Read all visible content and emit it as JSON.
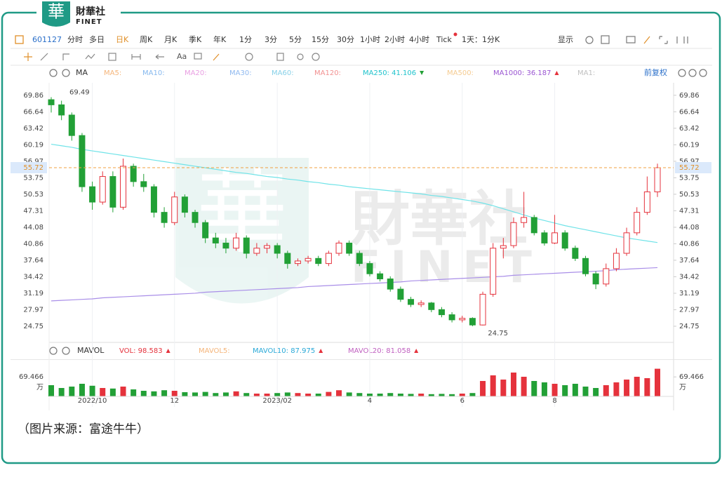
{
  "header": {
    "logo_char": "華",
    "brand": "財華社",
    "brand_en": "FINET"
  },
  "toolbar": {
    "symbol": "601127",
    "tabs": [
      "分时",
      "多日",
      "日K",
      "周K",
      "月K",
      "季K",
      "年K",
      "1分",
      "3分",
      "5分",
      "15分",
      "30分",
      "1小时",
      "2小时",
      "4小时",
      "Tick",
      "1天：1分K"
    ],
    "active_tab": "日K",
    "display": "显示",
    "font_tool": "Aa"
  },
  "indicators": {
    "name": "MA",
    "adjust": "前复权",
    "labels": [
      {
        "text": "MA5:",
        "color": "#f5b57a"
      },
      {
        "text": "MA10:",
        "color": "#86b8ee"
      },
      {
        "text": "MA20:",
        "color": "#e99ee2"
      },
      {
        "text": "MA30:",
        "color": "#8fb9f0"
      },
      {
        "text": "MA60:",
        "color": "#86d0e8"
      },
      {
        "text": "MA120:",
        "color": "#f29090"
      },
      {
        "text": "MA250: 41.106",
        "color": "#1fc3cc",
        "trend": "down"
      },
      {
        "text": "MA500:",
        "color": "#f5cb90"
      },
      {
        "text": "MA1000: 36.187",
        "color": "#9a55d2",
        "trend": "up"
      },
      {
        "text": "MA1:",
        "color": "#c0c0c0"
      }
    ]
  },
  "chart_data": {
    "type": "candlestick",
    "up_color": "#e5323c",
    "down_color": "#22a036",
    "categories": [
      null,
      null,
      null,
      null,
      "2022/10",
      null,
      null,
      null,
      null,
      null,
      null,
      null,
      "12",
      null,
      null,
      null,
      null,
      null,
      null,
      null,
      null,
      null,
      "2023/02",
      null,
      null,
      null,
      null,
      null,
      null,
      null,
      null,
      "4",
      null,
      null,
      null,
      null,
      null,
      null,
      null,
      null,
      "6",
      null,
      null,
      null,
      null,
      null,
      null,
      null,
      null,
      "8",
      null,
      null,
      null,
      null,
      null,
      null,
      null,
      null,
      null,
      null
    ],
    "candles": [
      [
        69,
        69.49,
        66.5,
        68
      ],
      [
        68,
        68.8,
        65,
        66
      ],
      [
        66,
        66.5,
        61,
        62
      ],
      [
        62,
        62.5,
        51,
        52
      ],
      [
        52,
        53,
        47.5,
        49
      ],
      [
        49,
        55,
        48.5,
        54
      ],
      [
        54,
        55,
        47,
        48
      ],
      [
        48,
        57.5,
        47.5,
        56
      ],
      [
        56,
        56.5,
        52,
        53
      ],
      [
        53,
        54.5,
        51,
        52
      ],
      [
        52,
        52.5,
        46,
        47
      ],
      [
        47,
        48,
        44,
        45
      ],
      [
        45,
        51,
        44.5,
        50
      ],
      [
        50,
        50.5,
        46,
        47
      ],
      [
        47,
        47.5,
        44,
        45
      ],
      [
        45,
        45.5,
        41,
        42
      ],
      [
        42,
        43,
        40,
        41
      ],
      [
        41,
        42,
        39,
        40
      ],
      [
        40,
        43,
        39.5,
        42
      ],
      [
        42,
        42.5,
        38,
        39
      ],
      [
        39,
        41,
        38.5,
        40
      ],
      [
        40,
        41,
        39,
        40.5
      ],
      [
        40.5,
        41,
        38,
        39
      ],
      [
        39,
        39.5,
        36,
        37
      ],
      [
        37,
        38,
        36.5,
        37.5
      ],
      [
        37.5,
        38.5,
        37,
        38
      ],
      [
        38,
        38.5,
        36.5,
        37
      ],
      [
        37,
        39.5,
        36.5,
        39
      ],
      [
        39,
        41.5,
        38.5,
        41
      ],
      [
        41,
        41.5,
        38.5,
        39
      ],
      [
        39,
        39.5,
        36.5,
        37
      ],
      [
        37,
        37.5,
        34.5,
        35
      ],
      [
        35,
        35.5,
        33.5,
        34
      ],
      [
        34,
        34.5,
        31.5,
        32
      ],
      [
        32,
        32.5,
        29.5,
        30
      ],
      [
        30,
        30.5,
        28.5,
        29
      ],
      [
        29,
        29.8,
        28.5,
        29.3
      ],
      [
        29.3,
        29.5,
        27.5,
        28
      ],
      [
        28,
        28.5,
        26.5,
        27
      ],
      [
        27,
        27.5,
        25.5,
        26
      ],
      [
        26,
        26.8,
        25.5,
        26.3
      ],
      [
        26.3,
        26.5,
        24.75,
        25
      ],
      [
        25,
        31.5,
        24.9,
        31
      ],
      [
        31,
        41,
        30.5,
        40
      ],
      [
        40,
        42,
        38,
        40.5
      ],
      [
        40.5,
        46,
        40,
        45
      ],
      [
        45,
        51,
        44,
        46
      ],
      [
        46,
        46.5,
        42.5,
        43
      ],
      [
        43,
        43.5,
        40.5,
        41
      ],
      [
        41,
        46.5,
        40.8,
        43
      ],
      [
        43,
        43.5,
        39.5,
        40
      ],
      [
        40,
        40.5,
        37.5,
        38
      ],
      [
        38,
        38.5,
        34.5,
        35
      ],
      [
        35,
        35.5,
        32,
        33
      ],
      [
        33,
        37,
        32.5,
        36
      ],
      [
        36,
        40,
        35.5,
        39
      ],
      [
        39,
        44,
        38.5,
        43
      ],
      [
        43,
        48,
        42.5,
        47
      ],
      [
        47,
        54,
        46.5,
        51
      ],
      [
        51,
        56.5,
        50,
        55.72
      ]
    ],
    "series": [
      {
        "name": "MA250",
        "color": "#6fe3e8",
        "values": [
          60.3,
          60.0,
          59.7,
          59.3,
          59.0,
          58.7,
          58.4,
          58.1,
          57.8,
          57.5,
          57.2,
          56.9,
          56.6,
          56.3,
          56.0,
          55.7,
          55.4,
          55.1,
          54.8,
          54.6,
          54.3,
          54.0,
          53.8,
          53.5,
          53.3,
          53.0,
          52.8,
          52.5,
          52.3,
          52.0,
          51.8,
          51.6,
          51.4,
          51.2,
          51.0,
          50.8,
          50.6,
          50.3,
          50.1,
          49.8,
          49.5,
          49.2,
          48.8,
          48.3,
          47.7,
          47.1,
          46.5,
          45.9,
          45.4,
          44.9,
          44.4,
          44.0,
          43.6,
          43.2,
          42.8,
          42.4,
          42.0,
          41.7,
          41.4,
          41.1
        ]
      },
      {
        "name": "MA1000",
        "color": "#a98ee8",
        "values": [
          29.7,
          29.8,
          29.9,
          30.0,
          30.1,
          30.3,
          30.4,
          30.5,
          30.6,
          30.7,
          30.8,
          30.9,
          31.0,
          31.1,
          31.2,
          31.4,
          31.5,
          31.6,
          31.7,
          31.8,
          31.9,
          32.0,
          32.1,
          32.2,
          32.3,
          32.5,
          32.6,
          32.7,
          32.8,
          32.9,
          33.0,
          33.1,
          33.2,
          33.3,
          33.4,
          33.6,
          33.7,
          33.8,
          33.9,
          34.0,
          34.1,
          34.2,
          34.3,
          34.4,
          34.5,
          34.7,
          34.8,
          34.9,
          35.0,
          35.1,
          35.2,
          35.3,
          35.4,
          35.5,
          35.6,
          35.8,
          35.9,
          36.0,
          36.1,
          36.2
        ]
      }
    ],
    "ylim": [
      21.6,
      72.3
    ],
    "yticks": [
      69.86,
      66.64,
      63.42,
      60.19,
      56.97,
      53.75,
      50.53,
      47.31,
      44.08,
      40.86,
      37.64,
      34.42,
      31.19,
      27.97,
      24.75
    ],
    "last_price": 55.72,
    "high_label": 69.49,
    "low_label": 24.75
  },
  "volume": {
    "indicator": "MAVOL",
    "unit": "万",
    "labels": [
      {
        "text": "VOL: 98.583",
        "color": "#e5323c",
        "trend": "up"
      },
      {
        "text": "MAVOL5:",
        "color": "#f5b57a"
      },
      {
        "text": "MAVOL10: 87.975",
        "color": "#2aa9d8",
        "trend": "up"
      },
      {
        "text": "MAVOL20: 81.058",
        "color": "#c060c0",
        "trend": "up"
      }
    ],
    "values": [
      40,
      30,
      35,
      45,
      38,
      30,
      28,
      35,
      25,
      20,
      18,
      22,
      20,
      15,
      14,
      16,
      12,
      14,
      18,
      12,
      10,
      10,
      12,
      14,
      12,
      10,
      10,
      16,
      22,
      14,
      12,
      10,
      10,
      12,
      10,
      9,
      10,
      8,
      9,
      8,
      10,
      12,
      55,
      75,
      60,
      85,
      70,
      55,
      50,
      45,
      40,
      45,
      35,
      30,
      40,
      50,
      60,
      70,
      65,
      98.583
    ],
    "ylim": [
      0,
      125
    ],
    "yticks": [
      69.466
    ]
  },
  "caption": "（图片来源：富途牛牛）"
}
